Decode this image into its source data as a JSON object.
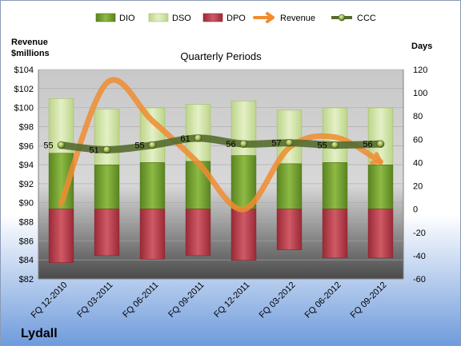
{
  "chart_data": {
    "type": "bar",
    "title": "Quarterly Periods",
    "left_axis_label_line1": "Revenue",
    "left_axis_label_line2": "$millions",
    "right_axis_label": "Days",
    "company": "Lydall",
    "categories": [
      "FQ 12-2010",
      "FQ 03-2011",
      "FQ 06-2011",
      "FQ 09-2011",
      "FQ 12-2011",
      "FQ 03-2012",
      "FQ 06-2012",
      "FQ 09-2012"
    ],
    "left_ylim": [
      82,
      104
    ],
    "left_ticks": [
      82,
      84,
      86,
      88,
      90,
      92,
      94,
      96,
      98,
      100,
      102,
      104
    ],
    "right_ylim": [
      -60,
      120
    ],
    "right_ticks": [
      -60,
      -40,
      -20,
      0,
      20,
      40,
      60,
      80,
      100,
      120
    ],
    "grid": true,
    "legend_position": "top",
    "series": [
      {
        "name": "DIO",
        "axis": "days",
        "color": "#6f9a2a",
        "values": [
          48,
          38,
          40,
          41,
          46,
          39,
          40,
          38
        ]
      },
      {
        "name": "DSO",
        "axis": "days",
        "color": "#d4e6a6",
        "values": [
          47,
          48,
          47,
          49,
          47,
          46,
          47,
          49
        ]
      },
      {
        "name": "DPO",
        "axis": "days",
        "color": "#b83a48",
        "values": [
          -46,
          -40,
          -43,
          -40,
          -44,
          -35,
          -42,
          -42
        ]
      },
      {
        "name": "Revenue",
        "axis": "revenue",
        "color": "#f08c30",
        "values": [
          89.9,
          102.6,
          98.6,
          94.2,
          89.3,
          95.8,
          96.9,
          94.3
        ]
      },
      {
        "name": "CCC",
        "axis": "days",
        "color": "#556b2f",
        "values": [
          55,
          51,
          55,
          61,
          56,
          57,
          55,
          56
        ],
        "labels": [
          "55",
          "51",
          "55",
          "61",
          "56",
          "57",
          "55",
          "56"
        ]
      }
    ]
  }
}
